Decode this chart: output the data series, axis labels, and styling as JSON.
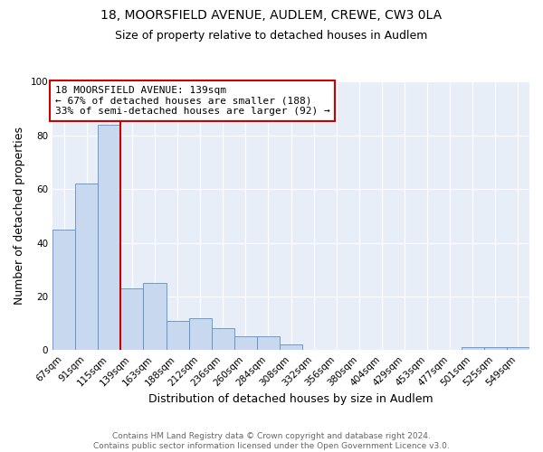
{
  "title": "18, MOORSFIELD AVENUE, AUDLEM, CREWE, CW3 0LA",
  "subtitle": "Size of property relative to detached houses in Audlem",
  "xlabel": "Distribution of detached houses by size in Audlem",
  "ylabel": "Number of detached properties",
  "bin_labels": [
    "67sqm",
    "91sqm",
    "115sqm",
    "139sqm",
    "163sqm",
    "188sqm",
    "212sqm",
    "236sqm",
    "260sqm",
    "284sqm",
    "308sqm",
    "332sqm",
    "356sqm",
    "380sqm",
    "404sqm",
    "429sqm",
    "453sqm",
    "477sqm",
    "501sqm",
    "525sqm",
    "549sqm"
  ],
  "bar_values": [
    45,
    62,
    84,
    23,
    25,
    11,
    12,
    8,
    5,
    5,
    2,
    0,
    0,
    0,
    0,
    0,
    0,
    0,
    1,
    1,
    1
  ],
  "bar_color": "#c8d9ef",
  "bar_edge_color": "#5b8fc7",
  "vline_color": "#cc0000",
  "ylim": [
    0,
    100
  ],
  "annotation_line1": "18 MOORSFIELD AVENUE: 139sqm",
  "annotation_line2": "← 67% of detached houses are smaller (188)",
  "annotation_line3": "33% of semi-detached houses are larger (92) →",
  "annotation_box_color": "#ffffff",
  "annotation_box_edge": "#cc0000",
  "footer1": "Contains HM Land Registry data © Crown copyright and database right 2024.",
  "footer2": "Contains public sector information licensed under the Open Government Licence v3.0.",
  "plot_bg_color": "#e8eef8",
  "fig_bg_color": "#ffffff",
  "grid_color": "#ffffff",
  "title_fontsize": 10,
  "subtitle_fontsize": 9,
  "axis_label_fontsize": 9,
  "tick_fontsize": 7.5,
  "annotation_fontsize": 8
}
